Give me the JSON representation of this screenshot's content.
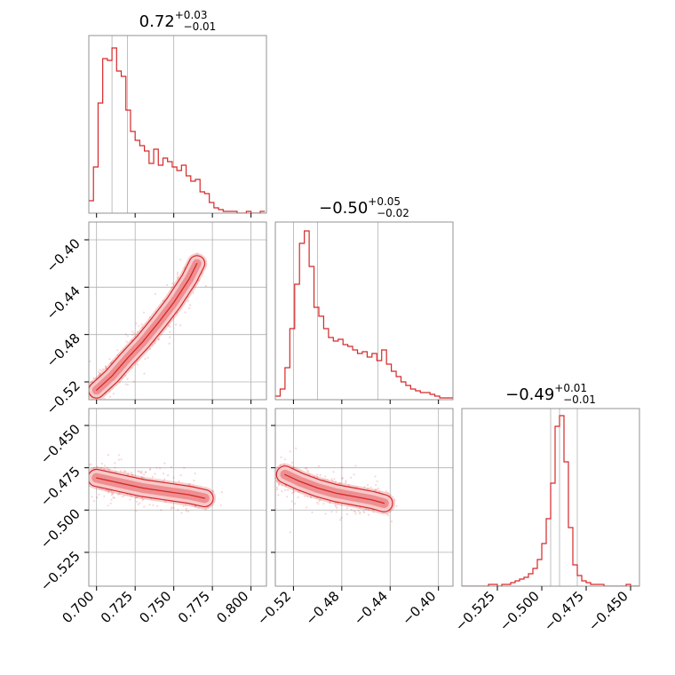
{
  "accent_color": "#d62728",
  "chart_data": [
    {
      "type": "histogram",
      "panel": "hist-param-1",
      "title": {
        "median": "0.72",
        "plus": "+0.03",
        "minus": "−0.01"
      },
      "xlim": [
        0.695,
        0.81
      ],
      "grid": true,
      "quantile_lines": [
        0.71,
        0.72,
        0.75
      ],
      "bins": [
        0.695,
        0.698,
        0.701,
        0.704,
        0.707,
        0.71,
        0.713,
        0.716,
        0.719,
        0.722,
        0.725,
        0.728,
        0.731,
        0.734,
        0.737,
        0.74,
        0.743,
        0.746,
        0.749,
        0.752,
        0.755,
        0.758,
        0.761,
        0.764,
        0.767,
        0.77,
        0.773,
        0.776,
        0.779,
        0.782,
        0.785,
        0.788,
        0.791,
        0.794,
        0.797,
        0.8,
        0.803,
        0.806,
        0.809
      ],
      "counts": [
        0.07,
        0.26,
        0.62,
        0.87,
        0.86,
        0.93,
        0.8,
        0.77,
        0.58,
        0.46,
        0.41,
        0.38,
        0.35,
        0.28,
        0.36,
        0.27,
        0.31,
        0.29,
        0.26,
        0.24,
        0.27,
        0.21,
        0.18,
        0.19,
        0.12,
        0.11,
        0.06,
        0.03,
        0.02,
        0.01,
        0.01,
        0.01,
        0.0,
        0.0,
        0.01,
        0.0,
        0.0,
        0.01
      ]
    },
    {
      "type": "histogram",
      "panel": "hist-param-2",
      "title": {
        "median": "−0.50",
        "plus": "+0.05",
        "minus": "−0.02"
      },
      "xlim": [
        -0.535,
        -0.388
      ],
      "grid": true,
      "quantile_lines": [
        -0.52,
        -0.5,
        -0.45
      ],
      "bins": [
        -0.535,
        -0.531,
        -0.527,
        -0.523,
        -0.519,
        -0.515,
        -0.511,
        -0.507,
        -0.503,
        -0.499,
        -0.495,
        -0.491,
        -0.487,
        -0.483,
        -0.479,
        -0.475,
        -0.471,
        -0.467,
        -0.463,
        -0.459,
        -0.455,
        -0.451,
        -0.447,
        -0.443,
        -0.439,
        -0.435,
        -0.431,
        -0.427,
        -0.423,
        -0.419,
        -0.415,
        -0.411,
        -0.407,
        -0.403,
        -0.399,
        -0.395,
        -0.391,
        -0.387
      ],
      "counts": [
        0.02,
        0.06,
        0.18,
        0.4,
        0.65,
        0.88,
        0.95,
        0.75,
        0.52,
        0.47,
        0.4,
        0.35,
        0.33,
        0.34,
        0.31,
        0.3,
        0.28,
        0.26,
        0.27,
        0.24,
        0.26,
        0.22,
        0.28,
        0.2,
        0.16,
        0.13,
        0.1,
        0.08,
        0.06,
        0.05,
        0.04,
        0.04,
        0.03,
        0.02,
        0.01,
        0.01,
        0.01
      ]
    },
    {
      "type": "histogram",
      "panel": "hist-param-3",
      "title": {
        "median": "−0.49",
        "plus": "+0.01",
        "minus": "−0.01"
      },
      "xlim": [
        -0.545,
        -0.445
      ],
      "grid": true,
      "quantile_lines": [
        -0.495,
        -0.49,
        -0.48
      ],
      "bins": [
        -0.545,
        -0.5425,
        -0.54,
        -0.5375,
        -0.535,
        -0.5325,
        -0.53,
        -0.5275,
        -0.525,
        -0.5225,
        -0.52,
        -0.5175,
        -0.515,
        -0.5125,
        -0.51,
        -0.5075,
        -0.505,
        -0.5025,
        -0.5,
        -0.4975,
        -0.495,
        -0.4925,
        -0.49,
        -0.4875,
        -0.485,
        -0.4825,
        -0.48,
        -0.4775,
        -0.475,
        -0.4725,
        -0.47,
        -0.4675,
        -0.465,
        -0.4625,
        -0.46,
        -0.4575,
        -0.455,
        -0.4525,
        -0.45,
        -0.4475,
        -0.445
      ],
      "counts": [
        0.0,
        0.0,
        0.0,
        0.0,
        0.0,
        0.0,
        0.01,
        0.01,
        0.0,
        0.01,
        0.01,
        0.02,
        0.03,
        0.04,
        0.05,
        0.07,
        0.1,
        0.15,
        0.24,
        0.38,
        0.58,
        0.9,
        0.96,
        0.7,
        0.33,
        0.12,
        0.06,
        0.03,
        0.02,
        0.01,
        0.01,
        0.01,
        0.0,
        0.0,
        0.0,
        0.0,
        0.0,
        0.01,
        0.0,
        0.0
      ]
    },
    {
      "type": "contour-scatter",
      "panel": "joint-1-2",
      "xlim": [
        0.695,
        0.81
      ],
      "ylim": [
        -0.535,
        -0.385
      ],
      "grid": true,
      "x_ticks": [
        0.7,
        0.725,
        0.75,
        0.775,
        0.8
      ],
      "y_ticks": [
        -0.52,
        -0.48,
        -0.44,
        -0.4
      ],
      "y_tick_labels": [
        "−0.52",
        "−0.48",
        "−0.44",
        "−0.40"
      ],
      "ridge": [
        [
          0.7,
          -0.527
        ],
        [
          0.71,
          -0.515
        ],
        [
          0.72,
          -0.5
        ],
        [
          0.73,
          -0.486
        ],
        [
          0.74,
          -0.47
        ],
        [
          0.75,
          -0.453
        ],
        [
          0.76,
          -0.433
        ],
        [
          0.765,
          -0.42
        ]
      ]
    },
    {
      "type": "contour-scatter",
      "panel": "joint-1-3",
      "xlim": [
        0.695,
        0.81
      ],
      "ylim": [
        -0.545,
        -0.44
      ],
      "grid": true,
      "x_ticks": [
        0.7,
        0.725,
        0.75,
        0.775,
        0.8
      ],
      "x_tick_labels": [
        "0.700",
        "0.725",
        "0.750",
        "0.775",
        "0.800"
      ],
      "y_ticks": [
        -0.525,
        -0.5,
        -0.475,
        -0.45
      ],
      "y_tick_labels": [
        "−0.525",
        "−0.500",
        "−0.475",
        "−0.450"
      ],
      "ridge": [
        [
          0.7,
          -0.481
        ],
        [
          0.715,
          -0.484
        ],
        [
          0.73,
          -0.487
        ],
        [
          0.745,
          -0.489
        ],
        [
          0.76,
          -0.491
        ],
        [
          0.77,
          -0.493
        ]
      ]
    },
    {
      "type": "contour-scatter",
      "panel": "joint-2-3",
      "xlim": [
        -0.535,
        -0.388
      ],
      "ylim": [
        -0.545,
        -0.44
      ],
      "grid": true,
      "x_ticks": [
        -0.52,
        -0.48,
        -0.44,
        -0.4
      ],
      "x_tick_labels": [
        "−0.52",
        "−0.48",
        "−0.44",
        "−0.40"
      ],
      "y_ticks": [
        -0.525,
        -0.5,
        -0.475,
        -0.45
      ],
      "ridge": [
        [
          -0.527,
          -0.479
        ],
        [
          -0.515,
          -0.483
        ],
        [
          -0.5,
          -0.487
        ],
        [
          -0.485,
          -0.49
        ],
        [
          -0.47,
          -0.492
        ],
        [
          -0.455,
          -0.494
        ],
        [
          -0.445,
          -0.496
        ]
      ]
    }
  ]
}
